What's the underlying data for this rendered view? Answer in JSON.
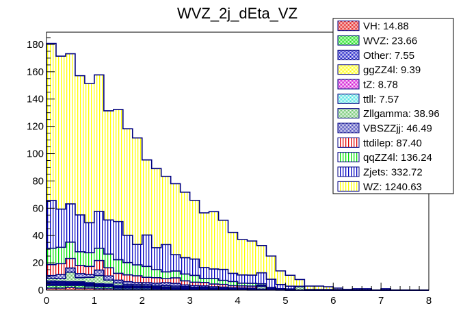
{
  "chart_data": {
    "type": "bar",
    "stacked": true,
    "title": "WVZ_2j_dEta_VZ",
    "xlabel": "",
    "ylabel": "",
    "xlim": [
      0,
      8
    ],
    "ylim": [
      0,
      189
    ],
    "bin_width": 0.2,
    "x_ticks": [
      "0",
      "1",
      "2",
      "3",
      "4",
      "5",
      "6",
      "7",
      "8"
    ],
    "y_ticks": [
      "0",
      "20",
      "40",
      "60",
      "80",
      "100",
      "120",
      "140",
      "160",
      "180"
    ],
    "legend_position": "top-right",
    "series": [
      {
        "name": "VH",
        "label": "VH: 14.88",
        "color": "#e00000",
        "pattern": "checker",
        "values": [
          1.5,
          1.5,
          2,
          1.5,
          1.5,
          1,
          1,
          0.5,
          0.5,
          0.5,
          0.5,
          0.5,
          0.5,
          0.3,
          0.3,
          0.3,
          0.3,
          0.2,
          0.2,
          0.2,
          0.2,
          0.1,
          0.1,
          0.1,
          0,
          0,
          0,
          0,
          0,
          0,
          0,
          0,
          0,
          0,
          0,
          0,
          0,
          0,
          0,
          0
        ]
      },
      {
        "name": "WVZ",
        "label": "WVZ: 23.66",
        "color": "#00e000",
        "pattern": "checker",
        "values": [
          2,
          2,
          1.5,
          2,
          1.5,
          1.5,
          1.5,
          1,
          1,
          1,
          1,
          0.8,
          0.8,
          0.7,
          0.6,
          0.5,
          0.5,
          0.4,
          0.4,
          0.3,
          0.3,
          0.3,
          0.3,
          0.2,
          0.2,
          0.1,
          0.1,
          0,
          0,
          0,
          0,
          0,
          0,
          0,
          0,
          0,
          0,
          0,
          0,
          0
        ]
      },
      {
        "name": "Other",
        "label": "Other: 7.55",
        "color": "#0000c0",
        "pattern": "checker",
        "values": [
          0.8,
          0.8,
          0.6,
          0.6,
          0.5,
          0.5,
          0.4,
          0.4,
          0.4,
          0.3,
          0.3,
          0.3,
          0.3,
          0.2,
          0.2,
          0.2,
          0.2,
          0.1,
          0.1,
          0.1,
          0.1,
          0.1,
          0.1,
          0.1,
          0,
          0,
          0,
          0,
          0,
          0,
          0,
          0,
          0,
          0,
          0,
          0,
          0,
          0,
          0,
          0
        ]
      },
      {
        "name": "ggZZ4l",
        "label": "ggZZ4l: 9.39",
        "color": "#ffff00",
        "pattern": "checker",
        "values": [
          0.8,
          0.7,
          0.7,
          0.7,
          0.6,
          0.6,
          0.5,
          0.5,
          0.5,
          0.5,
          0.4,
          0.4,
          0.3,
          0.3,
          0.3,
          0.2,
          0.2,
          0.2,
          0.2,
          0.1,
          0.1,
          0.1,
          0.1,
          0.1,
          0,
          0,
          0,
          0,
          0,
          0,
          0,
          0,
          0,
          0,
          0,
          0,
          0,
          0,
          0,
          0
        ]
      },
      {
        "name": "tZ",
        "label": "tZ: 8.78",
        "color": "#d000d0",
        "pattern": "checker",
        "values": [
          0.8,
          0.8,
          0.8,
          0.7,
          0.7,
          0.6,
          0.5,
          0.5,
          0.4,
          0.4,
          0.4,
          0.3,
          0.3,
          0.3,
          0.2,
          0.2,
          0.2,
          0.2,
          0.1,
          0.1,
          0.1,
          0.1,
          0.1,
          0,
          0,
          0,
          0,
          0,
          0,
          0,
          0,
          0,
          0,
          0,
          0,
          0,
          0,
          0,
          0,
          0
        ]
      },
      {
        "name": "ttll",
        "label": "ttll: 7.57",
        "color": "#40e0e0",
        "pattern": "checker",
        "values": [
          0.8,
          0.6,
          0.6,
          0.6,
          0.6,
          0.5,
          0.5,
          0.4,
          0.4,
          0.3,
          0.3,
          0.3,
          0.2,
          0.2,
          0.2,
          0.2,
          0.2,
          0.1,
          0.1,
          0.1,
          0.1,
          0.1,
          0,
          0,
          0,
          0,
          0,
          0,
          0,
          0,
          0,
          0,
          0,
          0,
          0,
          0,
          0,
          0,
          0,
          0
        ]
      },
      {
        "name": "Zllgamma",
        "label": "Zllgamma: 38.96",
        "color": "#60c060",
        "pattern": "checker",
        "values": [
          2,
          2,
          7,
          3,
          4,
          6,
          3,
          2,
          1,
          1,
          1,
          1,
          1,
          1,
          0.8,
          0.5,
          0.5,
          0.3,
          0.3,
          0.3,
          0.2,
          0.2,
          2,
          0.2,
          0,
          0,
          2.5,
          0,
          0,
          0,
          0,
          0,
          0,
          0,
          0,
          0,
          0,
          0,
          0,
          0
        ]
      },
      {
        "name": "VBSZZjj",
        "label": "VBSZZjj: 46.49",
        "color": "#3030b0",
        "pattern": "checker",
        "values": [
          2,
          3,
          3,
          3,
          2,
          4,
          3,
          2,
          2,
          1.5,
          1.5,
          1.5,
          2,
          2,
          1.2,
          1.2,
          1,
          1,
          0.8,
          0.6,
          0.5,
          0.5,
          0.5,
          0.3,
          0.3,
          0.2,
          0.2,
          0,
          0,
          0,
          0,
          0,
          0,
          0,
          0,
          0,
          0,
          0,
          0,
          0
        ]
      },
      {
        "name": "ttdilep",
        "label": "ttdilep: 87.40",
        "color": "#e00000",
        "pattern": "vlines",
        "values": [
          8,
          8,
          7,
          6,
          6,
          7,
          6,
          5,
          5,
          5,
          4,
          4,
          3,
          4,
          3,
          2.5,
          2.5,
          2,
          2,
          1.5,
          1.5,
          1.5,
          0.5,
          0.5,
          0.3,
          0.3,
          0,
          0,
          0,
          0,
          0,
          0,
          0,
          0,
          0,
          0,
          0,
          0,
          0,
          0
        ]
      },
      {
        "name": "qqZZ4l",
        "label": "qqZZ4l: 136.24",
        "color": "#00e000",
        "pattern": "vlines",
        "values": [
          12,
          12,
          12,
          10,
          10,
          9,
          10,
          10,
          9,
          8,
          8,
          6,
          5,
          5,
          5,
          5,
          3,
          4,
          3,
          3,
          2,
          2,
          1,
          0.5,
          0.3,
          0.3,
          0,
          0,
          0,
          0,
          0,
          0,
          0,
          0,
          0,
          0,
          0,
          0,
          0,
          0
        ]
      },
      {
        "name": "Zjets",
        "label": "Zjets: 332.72",
        "color": "#0000c0",
        "pattern": "vlines",
        "values": [
          35,
          28,
          28,
          27,
          22,
          27,
          25,
          28,
          20,
          15,
          23,
          16,
          20,
          12,
          12,
          12,
          8,
          7,
          8,
          6,
          6,
          6,
          8,
          6,
          3,
          2,
          0,
          0.5,
          0.5,
          0.5,
          0.5,
          0.5,
          1,
          1,
          0,
          1,
          0,
          0,
          0,
          0
        ]
      },
      {
        "name": "WZ",
        "label": "WZ: 1240.63",
        "color": "#ffff00",
        "pattern": "vlines",
        "values": [
          115,
          112,
          110,
          102,
          102,
          100,
          80,
          82,
          78,
          78,
          55,
          58,
          50,
          52,
          48,
          43,
          40,
          42,
          36,
          30,
          26,
          25,
          20,
          17,
          10,
          8,
          5,
          2.5,
          2.5,
          2,
          1,
          0,
          0,
          0,
          0,
          0,
          0,
          0,
          0,
          0
        ]
      }
    ],
    "totals": [
      180,
      172,
      174,
      163,
      147,
      145,
      130,
      125,
      105,
      110,
      95,
      86,
      89,
      83,
      73,
      72,
      61,
      58,
      55,
      45,
      40,
      38,
      32,
      25,
      12,
      10,
      10,
      3,
      3,
      2,
      1,
      0.5,
      1,
      1,
      0,
      1,
      0,
      0,
      0,
      0
    ]
  }
}
